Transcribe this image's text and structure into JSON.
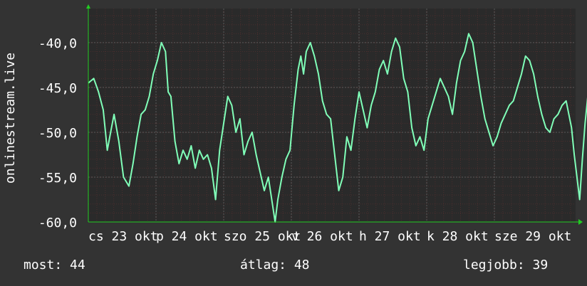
{
  "chart_data": {
    "type": "line",
    "ylabel": "onlinestream.live",
    "y_ticks": [
      "-40,0",
      "-45,0",
      "-50,0",
      "-55,0",
      "-60,0"
    ],
    "y_tick_values": [
      -40,
      -45,
      -50,
      -55,
      -60
    ],
    "ylim": [
      -60,
      -36.2
    ],
    "x_tick_labels": [
      "cs 23 okt",
      "p 24 okt",
      "szo 25 okt",
      "v 26 okt",
      "h 27 okt",
      "k 28 okt",
      "sze 29 okt"
    ],
    "x_ticks": [
      0,
      1,
      2,
      3,
      4,
      5,
      6
    ],
    "xlim": [
      0,
      7.2
    ],
    "grid": true,
    "series": [
      {
        "values": [
          [
            0.0,
            -44.5
          ],
          [
            0.08,
            -44.0
          ],
          [
            0.15,
            -45.5
          ],
          [
            0.22,
            -47.5
          ],
          [
            0.28,
            -52.0
          ],
          [
            0.33,
            -50.0
          ],
          [
            0.38,
            -48.0
          ],
          [
            0.45,
            -51.0
          ],
          [
            0.52,
            -55.0
          ],
          [
            0.6,
            -56.0
          ],
          [
            0.66,
            -53.5
          ],
          [
            0.72,
            -50.5
          ],
          [
            0.78,
            -48.0
          ],
          [
            0.84,
            -47.5
          ],
          [
            0.9,
            -46.0
          ],
          [
            0.96,
            -43.5
          ],
          [
            1.02,
            -42.0
          ],
          [
            1.08,
            -40.0
          ],
          [
            1.14,
            -41.0
          ],
          [
            1.18,
            -45.5
          ],
          [
            1.22,
            -46.0
          ],
          [
            1.28,
            -51.0
          ],
          [
            1.34,
            -53.5
          ],
          [
            1.4,
            -52.0
          ],
          [
            1.46,
            -53.0
          ],
          [
            1.52,
            -51.5
          ],
          [
            1.58,
            -54.0
          ],
          [
            1.64,
            -52.0
          ],
          [
            1.7,
            -53.0
          ],
          [
            1.76,
            -52.5
          ],
          [
            1.82,
            -54.0
          ],
          [
            1.88,
            -57.5
          ],
          [
            1.94,
            -52.0
          ],
          [
            2.0,
            -49.0
          ],
          [
            2.06,
            -46.0
          ],
          [
            2.12,
            -47.0
          ],
          [
            2.18,
            -50.0
          ],
          [
            2.24,
            -48.5
          ],
          [
            2.3,
            -52.5
          ],
          [
            2.36,
            -51.0
          ],
          [
            2.42,
            -50.0
          ],
          [
            2.48,
            -52.5
          ],
          [
            2.54,
            -54.5
          ],
          [
            2.6,
            -56.5
          ],
          [
            2.66,
            -55.0
          ],
          [
            2.72,
            -58.0
          ],
          [
            2.76,
            -60.0
          ],
          [
            2.8,
            -57.5
          ],
          [
            2.86,
            -55.0
          ],
          [
            2.92,
            -53.0
          ],
          [
            2.98,
            -52.0
          ],
          [
            3.04,
            -47.0
          ],
          [
            3.1,
            -43.0
          ],
          [
            3.14,
            -41.5
          ],
          [
            3.18,
            -43.5
          ],
          [
            3.22,
            -41.0
          ],
          [
            3.28,
            -40.0
          ],
          [
            3.34,
            -41.5
          ],
          [
            3.4,
            -43.5
          ],
          [
            3.46,
            -46.5
          ],
          [
            3.52,
            -48.0
          ],
          [
            3.58,
            -48.5
          ],
          [
            3.64,
            -52.5
          ],
          [
            3.7,
            -56.5
          ],
          [
            3.76,
            -55.0
          ],
          [
            3.82,
            -50.5
          ],
          [
            3.88,
            -52.0
          ],
          [
            3.94,
            -48.5
          ],
          [
            4.0,
            -45.5
          ],
          [
            4.06,
            -47.5
          ],
          [
            4.12,
            -49.5
          ],
          [
            4.18,
            -47.0
          ],
          [
            4.24,
            -45.5
          ],
          [
            4.3,
            -43.0
          ],
          [
            4.36,
            -42.0
          ],
          [
            4.42,
            -43.5
          ],
          [
            4.48,
            -41.0
          ],
          [
            4.54,
            -39.5
          ],
          [
            4.6,
            -40.5
          ],
          [
            4.66,
            -44.0
          ],
          [
            4.72,
            -45.5
          ],
          [
            4.78,
            -49.5
          ],
          [
            4.84,
            -51.5
          ],
          [
            4.9,
            -50.5
          ],
          [
            4.96,
            -52.0
          ],
          [
            5.02,
            -48.5
          ],
          [
            5.08,
            -47.0
          ],
          [
            5.14,
            -45.5
          ],
          [
            5.2,
            -44.0
          ],
          [
            5.26,
            -45.0
          ],
          [
            5.32,
            -46.0
          ],
          [
            5.38,
            -48.0
          ],
          [
            5.44,
            -44.5
          ],
          [
            5.5,
            -42.0
          ],
          [
            5.56,
            -41.0
          ],
          [
            5.62,
            -39.0
          ],
          [
            5.68,
            -40.0
          ],
          [
            5.74,
            -43.0
          ],
          [
            5.8,
            -46.0
          ],
          [
            5.86,
            -48.5
          ],
          [
            5.92,
            -50.0
          ],
          [
            5.98,
            -51.5
          ],
          [
            6.04,
            -50.5
          ],
          [
            6.1,
            -49.0
          ],
          [
            6.16,
            -48.0
          ],
          [
            6.22,
            -47.0
          ],
          [
            6.28,
            -46.5
          ],
          [
            6.34,
            -45.0
          ],
          [
            6.4,
            -43.5
          ],
          [
            6.46,
            -41.5
          ],
          [
            6.52,
            -42.0
          ],
          [
            6.58,
            -43.5
          ],
          [
            6.64,
            -46.0
          ],
          [
            6.7,
            -48.0
          ],
          [
            6.76,
            -49.5
          ],
          [
            6.82,
            -50.0
          ],
          [
            6.88,
            -48.5
          ],
          [
            6.94,
            -48.0
          ],
          [
            7.0,
            -47.0
          ],
          [
            7.06,
            -46.5
          ],
          [
            7.1,
            -48.0
          ],
          [
            7.14,
            -49.5
          ],
          [
            7.18,
            -52.5
          ],
          [
            7.22,
            -55.0
          ],
          [
            7.26,
            -57.5
          ],
          [
            7.3,
            -53.0
          ],
          [
            7.34,
            -49.0
          ],
          [
            7.38,
            -46.0
          ],
          [
            7.42,
            -42.5
          ],
          [
            7.46,
            -43.5
          ]
        ]
      }
    ]
  },
  "colors": {
    "background": "#333333",
    "plot_background": "#2a2a2a",
    "grid_major": "#4a4a4a",
    "grid_minor": "#3c2a2a",
    "line": "#80ffb8",
    "axis_arrow": "#22cc22",
    "text": "#ffffff"
  },
  "footer": {
    "current_label": "most:",
    "current_value": "44",
    "average_label": "átlag:",
    "average_value": "48",
    "best_label": "legjobb:",
    "best_value": "39"
  }
}
